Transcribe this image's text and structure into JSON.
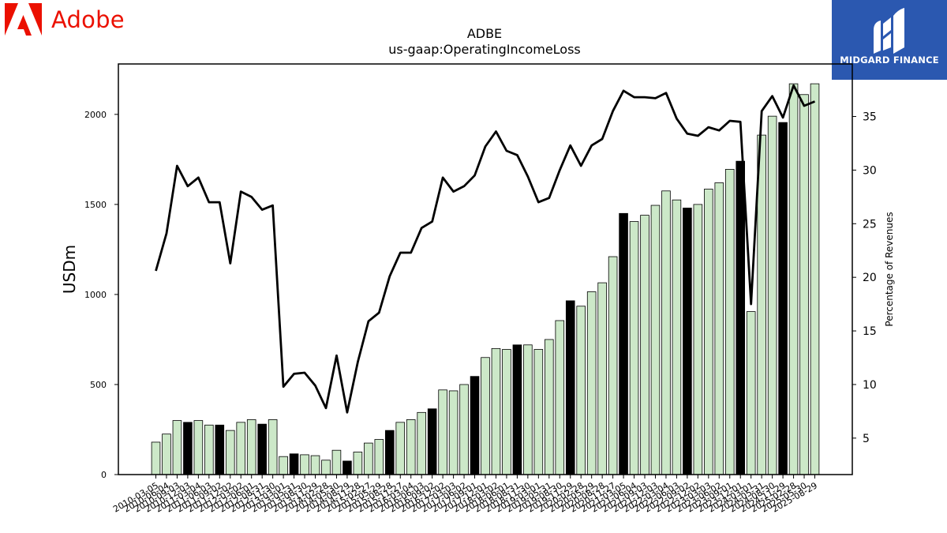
{
  "header": {
    "brand_name": "Adobe",
    "partner_name": "MIDGARD FINANCE",
    "brand_color": "#eb1000",
    "partner_color": "#2b58b0"
  },
  "chart_data": {
    "type": "bar",
    "title": "ADBE",
    "subtitle": "us-gaap:OperatingIncomeLoss",
    "ylabel": "USDm",
    "y2label": "Percentage of Revenues",
    "ylim": [
      0,
      2280
    ],
    "y2lim": [
      1.6,
      39.9
    ],
    "yticks": [
      0,
      500,
      1000,
      1500,
      2000
    ],
    "y2ticks": [
      5,
      10,
      15,
      20,
      25,
      30,
      35
    ],
    "grid": false,
    "bar_fill": "#cce8c8",
    "highlight_fill": "#000000",
    "categories": [
      "2010-03-05",
      "2010-06-04",
      "2010-09-03",
      "2010-12-03",
      "2011-03-04",
      "2011-06-03",
      "2011-09-02",
      "2011-12-02",
      "2012-03-02",
      "2012-06-01",
      "2012-08-31",
      "2012-11-30",
      "2013-03-01",
      "2013-05-31",
      "2013-08-30",
      "2013-11-29",
      "2014-02-28",
      "2014-05-30",
      "2014-08-29",
      "2014-11-28",
      "2015-02-27",
      "2015-05-29",
      "2015-08-28",
      "2015-11-27",
      "2016-03-04",
      "2016-06-03",
      "2016-09-02",
      "2016-12-02",
      "2017-03-03",
      "2017-06-02",
      "2017-09-01",
      "2017-12-01",
      "2018-03-02",
      "2018-06-01",
      "2018-08-31",
      "2018-11-30",
      "2019-03-01",
      "2019-05-31",
      "2019-08-30",
      "2019-11-29",
      "2020-02-28",
      "2020-05-29",
      "2020-08-28",
      "2020-11-27",
      "2021-03-05",
      "2021-06-04",
      "2021-09-03",
      "2021-12-03",
      "2022-03-04",
      "2022-06-03",
      "2022-09-02",
      "2022-12-02",
      "2023-03-03",
      "2023-06-02",
      "2023-09-01",
      "2023-12-01",
      "2024-03-01",
      "2024-05-31",
      "2024-08-30",
      "2024-11-29",
      "2025-02-28",
      "2025-05-30",
      "2025-08-29"
    ],
    "highlight": [
      false,
      false,
      false,
      true,
      false,
      false,
      true,
      false,
      false,
      false,
      true,
      false,
      false,
      true,
      false,
      false,
      false,
      false,
      true,
      false,
      false,
      false,
      true,
      false,
      false,
      false,
      true,
      false,
      false,
      false,
      true,
      false,
      false,
      false,
      true,
      false,
      false,
      false,
      false,
      true,
      false,
      false,
      false,
      false,
      true,
      false,
      false,
      false,
      false,
      false,
      true,
      false,
      false,
      false,
      false,
      true,
      false,
      false,
      false,
      true,
      false,
      false,
      false
    ],
    "series": [
      {
        "name": "",
        "axis": "left",
        "values": [
          180,
          225,
          300,
          290,
          300,
          275,
          275,
          245,
          290,
          305,
          280,
          305,
          100,
          115,
          110,
          105,
          80,
          135,
          75,
          125,
          175,
          195,
          245,
          290,
          305,
          345,
          365,
          470,
          465,
          500,
          545,
          650,
          700,
          695,
          720,
          720,
          695,
          750,
          855,
          965,
          935,
          1015,
          1065,
          1210,
          1450,
          1405,
          1440,
          1495,
          1575,
          1525,
          1480,
          1500,
          1585,
          1620,
          1695,
          1740,
          905,
          1885,
          1990,
          1955,
          2170,
          2110,
          2170
        ]
      },
      {
        "name": "",
        "axis": "right",
        "type": "line",
        "values": [
          20.6,
          24.1,
          30.4,
          28.5,
          29.3,
          27.0,
          27.0,
          21.3,
          28.0,
          27.5,
          26.3,
          26.7,
          9.8,
          11.0,
          11.1,
          9.9,
          7.8,
          12.7,
          7.4,
          12.1,
          15.9,
          16.7,
          20.1,
          22.3,
          22.3,
          24.6,
          25.2,
          29.3,
          28.0,
          28.5,
          29.5,
          32.2,
          33.6,
          31.8,
          31.4,
          29.4,
          27.0,
          27.4,
          30.0,
          32.3,
          30.4,
          32.3,
          32.9,
          35.5,
          37.4,
          36.8,
          36.8,
          36.7,
          37.2,
          34.8,
          33.4,
          33.2,
          34.0,
          33.7,
          34.6,
          34.5,
          17.5,
          35.5,
          36.9,
          34.9,
          37.9,
          36.0,
          36.4
        ]
      }
    ]
  }
}
